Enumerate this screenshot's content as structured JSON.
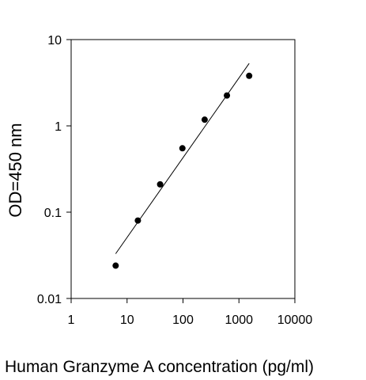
{
  "chart_data": {
    "type": "scatter",
    "title": "",
    "xlabel": "Human  Granzyme A concentration (pg/ml)",
    "ylabel": "OD=450 nm",
    "x_scale": "log",
    "y_scale": "log",
    "xlim": [
      1,
      10000
    ],
    "ylim": [
      0.01,
      10
    ],
    "x_ticks": [
      1,
      10,
      100,
      1000,
      10000
    ],
    "x_tick_labels": [
      "1",
      "10",
      "100",
      "1000",
      "10000"
    ],
    "y_ticks": [
      0.01,
      0.1,
      1,
      10
    ],
    "y_tick_labels": [
      "0.01",
      "0.1",
      "1",
      "10"
    ],
    "grid": false,
    "legend": "none",
    "points": [
      {
        "x": 6.25,
        "y": 0.024
      },
      {
        "x": 15.6,
        "y": 0.08
      },
      {
        "x": 39,
        "y": 0.21
      },
      {
        "x": 97.6,
        "y": 0.55
      },
      {
        "x": 244,
        "y": 1.18
      },
      {
        "x": 610,
        "y": 2.25
      },
      {
        "x": 1525,
        "y": 3.8
      }
    ],
    "fit_line": [
      {
        "x": 6.25,
        "y": 0.033
      },
      {
        "x": 1525,
        "y": 5.3
      }
    ],
    "colors": {
      "points": "#000000",
      "line": "#000000"
    }
  }
}
